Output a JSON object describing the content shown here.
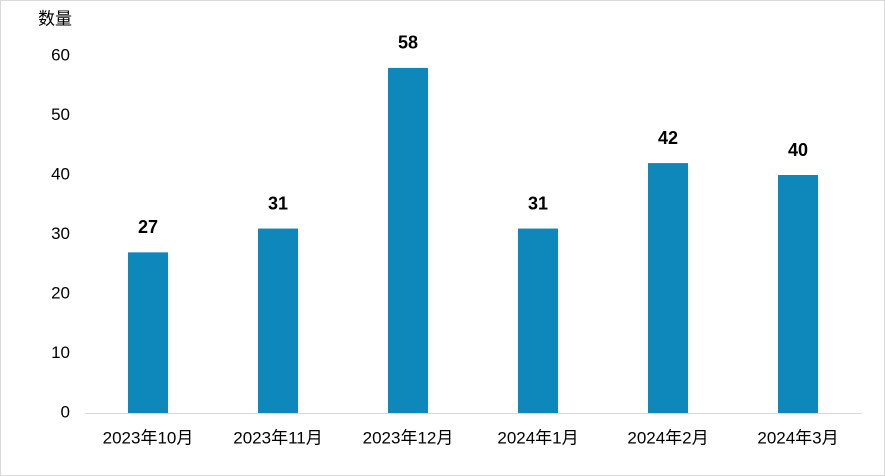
{
  "chart_data": {
    "type": "bar",
    "y_label": "数量",
    "categories": [
      "2023年10月",
      "2023年11月",
      "2023年12月",
      "2024年1月",
      "2024年2月",
      "2024年3月"
    ],
    "values": [
      27,
      31,
      58,
      31,
      42,
      40
    ],
    "color": "#0e87ba",
    "ylim": [
      0,
      60
    ],
    "yticks": [
      0,
      10,
      20,
      30,
      40,
      50,
      60
    ],
    "grid": false
  }
}
